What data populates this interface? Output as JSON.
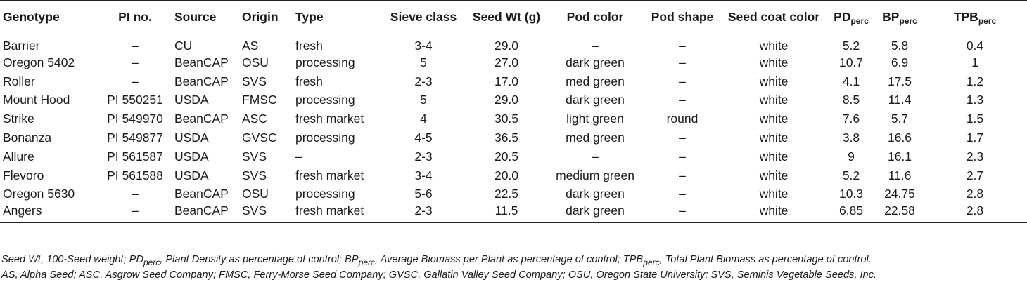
{
  "table": {
    "columns": [
      {
        "label": "Genotype",
        "sub": "",
        "align": "l"
      },
      {
        "label": "PI no.",
        "sub": "",
        "align": "c"
      },
      {
        "label": "Source",
        "sub": "",
        "align": "l"
      },
      {
        "label": "Origin",
        "sub": "",
        "align": "l"
      },
      {
        "label": "Type",
        "sub": "",
        "align": "l"
      },
      {
        "label": "Sieve class",
        "sub": "",
        "align": "c"
      },
      {
        "label": "Seed Wt (g)",
        "sub": "",
        "align": "c"
      },
      {
        "label": "Pod color",
        "sub": "",
        "align": "c"
      },
      {
        "label": "Pod shape",
        "sub": "",
        "align": "c"
      },
      {
        "label": "Seed coat color",
        "sub": "",
        "align": "c"
      },
      {
        "label": "PD",
        "sub": "perc",
        "align": "c"
      },
      {
        "label": "BP",
        "sub": "perc",
        "align": "c"
      },
      {
        "label": "TPB",
        "sub": "perc",
        "align": "c"
      }
    ],
    "rows": [
      [
        "Barrier",
        "–",
        "CU",
        "AS",
        "fresh",
        "3-4",
        "29.0",
        "–",
        "–",
        "white",
        "5.2",
        "5.8",
        "0.4"
      ],
      [
        "Oregon 5402",
        "–",
        "BeanCAP",
        "OSU",
        "processing",
        "5",
        "27.0",
        "dark green",
        "–",
        "white",
        "10.7",
        "6.9",
        "1"
      ],
      [
        "Roller",
        "–",
        "BeanCAP",
        "SVS",
        "fresh",
        "2-3",
        "17.0",
        "med green",
        "–",
        "white",
        "4.1",
        "17.5",
        "1.2"
      ],
      [
        "Mount Hood",
        "PI 550251",
        "USDA",
        "FMSC",
        "processing",
        "5",
        "29.0",
        "dark green",
        "–",
        "white",
        "8.5",
        "11.4",
        "1.3"
      ],
      [
        "Strike",
        "PI 549970",
        "BeanCAP",
        "ASC",
        "fresh market",
        "4",
        "30.5",
        "light green",
        "round",
        "white",
        "7.6",
        "5.7",
        "1.5"
      ],
      [
        "Bonanza",
        "PI 549877",
        "USDA",
        "GVSC",
        "processing",
        "4-5",
        "36.5",
        "med green",
        "–",
        "white",
        "3.8",
        "16.6",
        "1.7"
      ],
      [
        "Allure",
        "PI 561587",
        "USDA",
        "SVS",
        "–",
        "2-3",
        "20.5",
        "–",
        "–",
        "white",
        "9",
        "16.1",
        "2.3"
      ],
      [
        "Flevoro",
        "PI 561588",
        "USDA",
        "SVS",
        "fresh market",
        "3-4",
        "20.0",
        "medium green",
        "–",
        "white",
        "5.2",
        "11.6",
        "2.7"
      ],
      [
        "Oregon 5630",
        "–",
        "BeanCAP",
        "OSU",
        "processing",
        "5-6",
        "22.5",
        "dark green",
        "–",
        "white",
        "10.3",
        "24.75",
        "2.8"
      ],
      [
        "Angers",
        "–",
        "BeanCAP",
        "SVS",
        "fresh market",
        "2-3",
        "11.5",
        "dark green",
        "–",
        "white",
        "6.85",
        "22.58",
        "2.8"
      ]
    ]
  },
  "footnote": {
    "parts": [
      {
        "text": "Seed Wt, 100-Seed weight; PD",
        "sub": false
      },
      {
        "text": "perc",
        "sub": true
      },
      {
        "text": ", Plant Density as percentage of control; BP",
        "sub": false
      },
      {
        "text": "perc",
        "sub": true
      },
      {
        "text": ", Average Biomass per Plant as percentage of control; TPB",
        "sub": false
      },
      {
        "text": "perc",
        "sub": true
      },
      {
        "text": ", Total Plant Biomass as percentage of control.",
        "sub": false
      }
    ],
    "abbreviations": "AS, Alpha Seed; ASC, Asgrow Seed Company; FMSC, Ferry-Morse Seed Company; GVSC, Gallatin Valley Seed Company; OSU, Oregon State University; SVS, Seminis Vegetable Seeds, Inc."
  }
}
